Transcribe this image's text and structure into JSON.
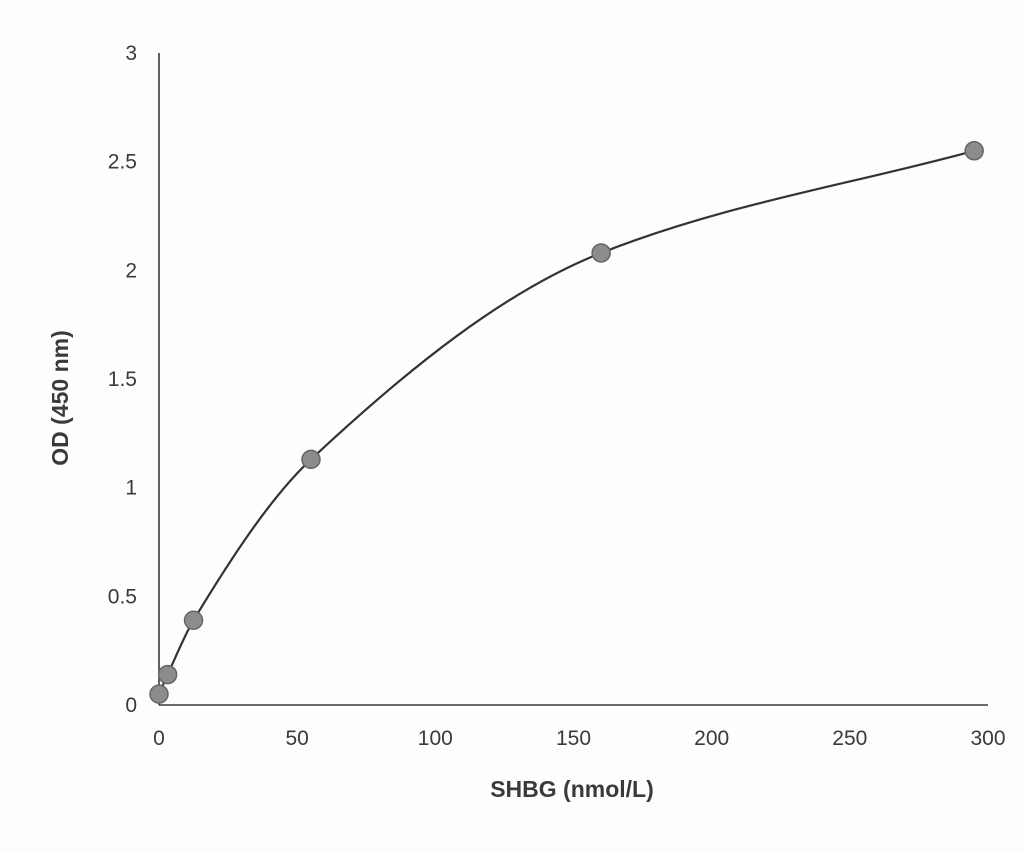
{
  "chart_data": {
    "type": "scatter",
    "title": "",
    "xlabel": "SHBG (nmol/L)",
    "ylabel": "OD (450 nm)",
    "xlim": [
      0,
      300
    ],
    "ylim": [
      0,
      3
    ],
    "xticks": [
      "0",
      "50",
      "100",
      "150",
      "200",
      "250",
      "300"
    ],
    "yticks": [
      "0",
      "0.5",
      "1",
      "1.5",
      "2",
      "2.5",
      "3"
    ],
    "grid": false,
    "legend": "none",
    "series": [
      {
        "x": [
          0,
          3.125,
          12.5,
          55,
          160,
          295
        ],
        "y": [
          0.05,
          0.14,
          0.39,
          1.13,
          2.08,
          2.55
        ],
        "marker_color": "#8c8c8c",
        "fit_curve": true
      }
    ],
    "colors": {
      "axis": "#3a3a3a",
      "curve": "#333333",
      "marker": "#8c8c8c",
      "marker_edge": "#666666"
    }
  }
}
